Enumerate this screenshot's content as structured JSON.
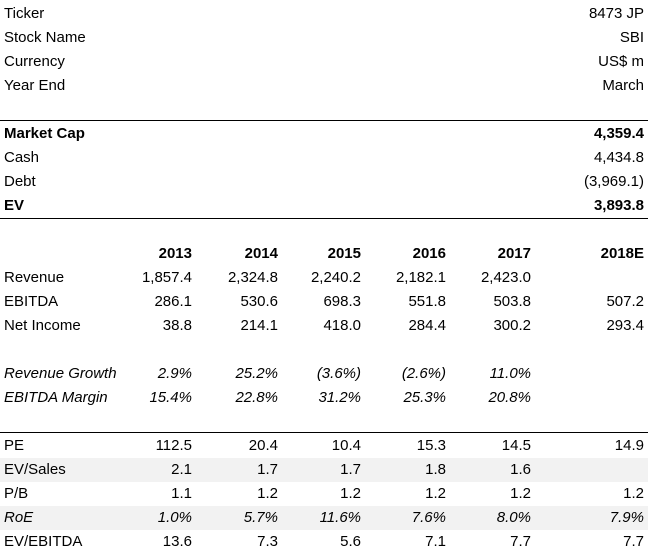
{
  "info": [
    {
      "label": "Ticker",
      "value": "8473 JP"
    },
    {
      "label": "Stock Name",
      "value": "SBI"
    },
    {
      "label": "Currency",
      "value": "US$ m"
    },
    {
      "label": "Year End",
      "value": "March"
    }
  ],
  "valuation": [
    {
      "label": "Market Cap",
      "value": "4,359.4"
    },
    {
      "label": "Cash",
      "value": "4,434.8"
    },
    {
      "label": "Debt",
      "value": "(3,969.1)"
    },
    {
      "label": "EV",
      "value": "3,893.8"
    }
  ],
  "years": [
    "2013",
    "2014",
    "2015",
    "2016",
    "2017",
    "2018E"
  ],
  "financials": [
    {
      "label": "Revenue",
      "values": [
        "1,857.4",
        "2,324.8",
        "2,240.2",
        "2,182.1",
        "2,423.0",
        ""
      ]
    },
    {
      "label": "EBITDA",
      "values": [
        "286.1",
        "530.6",
        "698.3",
        "551.8",
        "503.8",
        "507.2"
      ]
    },
    {
      "label": "Net Income",
      "values": [
        "38.8",
        "214.1",
        "418.0",
        "284.4",
        "300.2",
        "293.4"
      ]
    }
  ],
  "ratios": [
    {
      "label": "Revenue Growth",
      "values": [
        "2.9%",
        "25.2%",
        "(3.6%)",
        "(2.6%)",
        "11.0%",
        ""
      ]
    },
    {
      "label": "EBITDA Margin",
      "values": [
        "15.4%",
        "22.8%",
        "31.2%",
        "25.3%",
        "20.8%",
        ""
      ]
    }
  ],
  "multiples": [
    {
      "label": "PE",
      "values": [
        "112.5",
        "20.4",
        "10.4",
        "15.3",
        "14.5",
        "14.9"
      ]
    },
    {
      "label": "EV/Sales",
      "values": [
        "2.1",
        "1.7",
        "1.7",
        "1.8",
        "1.6",
        ""
      ]
    },
    {
      "label": "P/B",
      "values": [
        "1.1",
        "1.2",
        "1.2",
        "1.2",
        "1.2",
        "1.2"
      ]
    },
    {
      "label": "RoE",
      "values": [
        "1.0%",
        "5.7%",
        "11.6%",
        "7.6%",
        "8.0%",
        "7.9%"
      ]
    },
    {
      "label": "EV/EBITDA",
      "values": [
        "13.6",
        "7.3",
        "5.6",
        "7.1",
        "7.7",
        "7.7"
      ]
    }
  ]
}
